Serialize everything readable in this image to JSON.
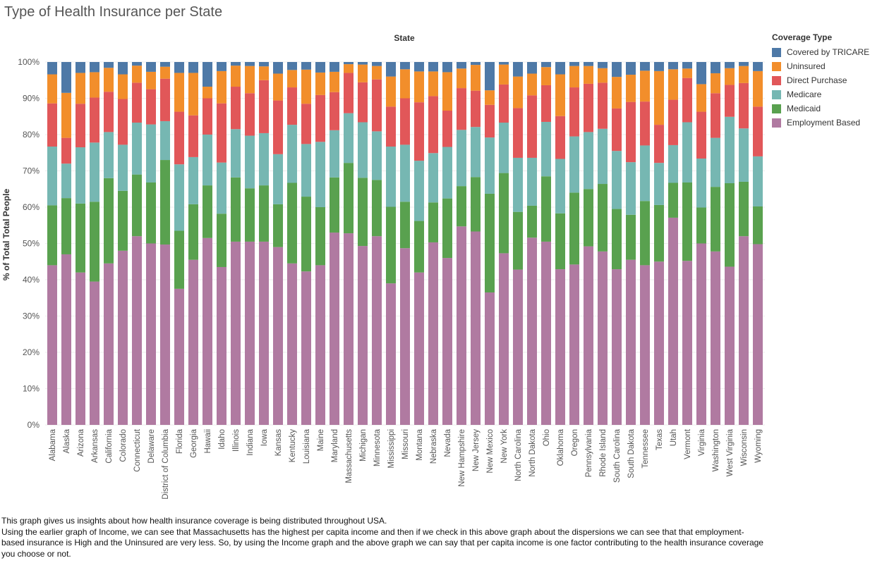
{
  "page": {
    "title": "Type of Health Insurance per State"
  },
  "caption": {
    "line1": "This graph gives us insights about how health insurance coverage is being distributed throughout USA.",
    "line2": "Using the earlier graph of Income, we can see that Massachusetts has the highest per capita income and then if we check in this above graph about the dispersions we can see that that employment-based insurance is High and the Uninsured are very less. So, by using the Income graph and the above graph we can say that per capita income is one factor contributing to the health insurance coverage you choose or not."
  },
  "legend": {
    "title": "Coverage Type",
    "items": [
      {
        "label": "Covered by TRICARE",
        "color": "#4e79a7"
      },
      {
        "label": "Uninsured",
        "color": "#f28e2b"
      },
      {
        "label": "Direct Purchase",
        "color": "#e15759"
      },
      {
        "label": "Medicare",
        "color": "#76b7b2"
      },
      {
        "label": "Medicaid",
        "color": "#59a14f"
      },
      {
        "label": "Employment Based",
        "color": "#b07aa1"
      }
    ]
  },
  "chart_data": {
    "type": "bar",
    "stacked": true,
    "title": "Type of Health Insurance per State",
    "xlabel": "State",
    "ylabel": "% of Total Total People",
    "ylim": [
      0,
      100
    ],
    "yticks": [
      "0%",
      "10%",
      "20%",
      "30%",
      "40%",
      "50%",
      "60%",
      "70%",
      "80%",
      "90%",
      "100%"
    ],
    "legend_position": "right",
    "categories": [
      "Alabama",
      "Alaska",
      "Arizona",
      "Arkansas",
      "California",
      "Colorado",
      "Connecticut",
      "Delaware",
      "District of Columbia",
      "Florida",
      "Georgia",
      "Hawaii",
      "Idaho",
      "Illinois",
      "Indiana",
      "Iowa",
      "Kansas",
      "Kentucky",
      "Louisiana",
      "Maine",
      "Maryland",
      "Massachusetts",
      "Michigan",
      "Minnesota",
      "Mississippi",
      "Missouri",
      "Montana",
      "Nebraska",
      "Nevada",
      "New Hampshire",
      "New Jersey",
      "New Mexico",
      "New York",
      "North Carolina",
      "North Dakota",
      "Ohio",
      "Oklahoma",
      "Oregon",
      "Pennsylvania",
      "Rhode Island",
      "South Carolina",
      "South Dakota",
      "Tennessee",
      "Texas",
      "Utah",
      "Vermont",
      "Virginia",
      "Washington",
      "West Virginia",
      "Wisconsin",
      "Wyoming"
    ],
    "series": [
      {
        "name": "Employment Based",
        "color": "#b07aa1",
        "values": [
          44.0,
          47.0,
          42.0,
          39.5,
          44.5,
          48.0,
          52.0,
          50.0,
          49.7,
          37.5,
          45.5,
          51.5,
          43.5,
          50.5,
          50.5,
          50.5,
          49.0,
          44.5,
          42.3,
          44.0,
          53.0,
          52.8,
          49.3,
          52.0,
          39.0,
          48.7,
          42.0,
          50.3,
          46.0,
          54.7,
          53.3,
          36.5,
          47.3,
          42.8,
          51.6,
          50.5,
          42.9,
          44.2,
          49.2,
          47.8,
          42.9,
          45.5,
          44.0,
          45.0,
          57.1,
          45.2,
          50.0,
          47.8,
          43.6,
          52.0,
          49.8
        ]
      },
      {
        "name": "Medicaid",
        "color": "#59a14f",
        "values": [
          16.5,
          15.5,
          19.0,
          22.0,
          23.5,
          16.5,
          17.0,
          16.8,
          23.3,
          16.0,
          15.3,
          14.5,
          14.7,
          17.7,
          14.7,
          15.5,
          11.8,
          22.2,
          20.6,
          16.0,
          15.2,
          19.4,
          18.8,
          15.5,
          21.1,
          12.8,
          14.2,
          11.0,
          16.4,
          11.1,
          15.0,
          27.2,
          22.1,
          15.9,
          8.8,
          18.0,
          15.4,
          19.8,
          15.8,
          18.6,
          16.6,
          12.4,
          17.7,
          15.6,
          9.6,
          21.6,
          9.9,
          17.8,
          23.0,
          15.0,
          10.4
        ]
      },
      {
        "name": "Medicare",
        "color": "#76b7b2",
        "values": [
          16.2,
          9.5,
          15.5,
          16.3,
          12.7,
          12.7,
          14.3,
          16.0,
          10.7,
          18.3,
          13.0,
          14.0,
          14.1,
          13.3,
          14.5,
          14.4,
          13.8,
          16.0,
          14.5,
          18.0,
          13.0,
          13.7,
          15.3,
          13.4,
          16.6,
          15.7,
          16.6,
          13.6,
          14.2,
          15.5,
          13.8,
          15.5,
          13.9,
          14.9,
          13.2,
          15.0,
          15.0,
          15.5,
          15.7,
          15.2,
          16.0,
          14.5,
          15.3,
          11.6,
          10.4,
          16.6,
          13.5,
          13.5,
          18.3,
          14.7,
          13.8
        ]
      },
      {
        "name": "Direct Purchase",
        "color": "#e15759",
        "values": [
          11.9,
          7.1,
          12.0,
          12.4,
          11.1,
          12.6,
          11.0,
          9.7,
          11.7,
          14.5,
          11.5,
          10.0,
          16.3,
          11.7,
          11.7,
          14.6,
          14.8,
          10.3,
          11.1,
          12.9,
          10.5,
          11.1,
          11.0,
          14.3,
          11.0,
          12.8,
          16.1,
          15.7,
          10.0,
          11.5,
          10.0,
          9.0,
          10.5,
          13.7,
          17.2,
          10.1,
          11.8,
          13.5,
          13.3,
          12.7,
          11.7,
          16.6,
          12.1,
          10.5,
          12.5,
          12.2,
          12.9,
          12.3,
          8.8,
          12.5,
          13.7
        ]
      },
      {
        "name": "Uninsured",
        "color": "#f28e2b",
        "values": [
          8.0,
          12.4,
          8.5,
          7.0,
          6.6,
          6.8,
          4.7,
          4.8,
          3.3,
          10.7,
          11.7,
          3.2,
          8.9,
          5.8,
          7.5,
          3.8,
          7.4,
          4.8,
          9.4,
          6.2,
          5.6,
          2.4,
          4.9,
          3.7,
          8.3,
          8.0,
          8.5,
          6.8,
          10.6,
          5.4,
          7.1,
          4.0,
          5.5,
          8.7,
          6.0,
          5.0,
          11.5,
          5.9,
          4.9,
          4.0,
          8.7,
          7.5,
          8.5,
          14.8,
          8.4,
          2.6,
          7.6,
          5.5,
          4.6,
          4.7,
          9.8
        ]
      },
      {
        "name": "Covered by TRICARE",
        "color": "#4e79a7",
        "values": [
          3.4,
          8.5,
          3.0,
          2.8,
          1.6,
          3.4,
          1.0,
          2.7,
          1.3,
          3.0,
          3.0,
          6.8,
          2.5,
          1.0,
          1.1,
          1.2,
          3.2,
          2.2,
          2.1,
          2.9,
          2.7,
          0.6,
          0.7,
          1.1,
          4.0,
          2.0,
          2.6,
          2.6,
          2.8,
          1.8,
          0.8,
          7.8,
          0.7,
          4.0,
          3.2,
          1.4,
          3.4,
          1.1,
          1.1,
          1.7,
          4.1,
          3.5,
          2.4,
          2.5,
          2.0,
          1.8,
          6.1,
          3.1,
          1.7,
          1.1,
          2.5
        ]
      }
    ]
  }
}
